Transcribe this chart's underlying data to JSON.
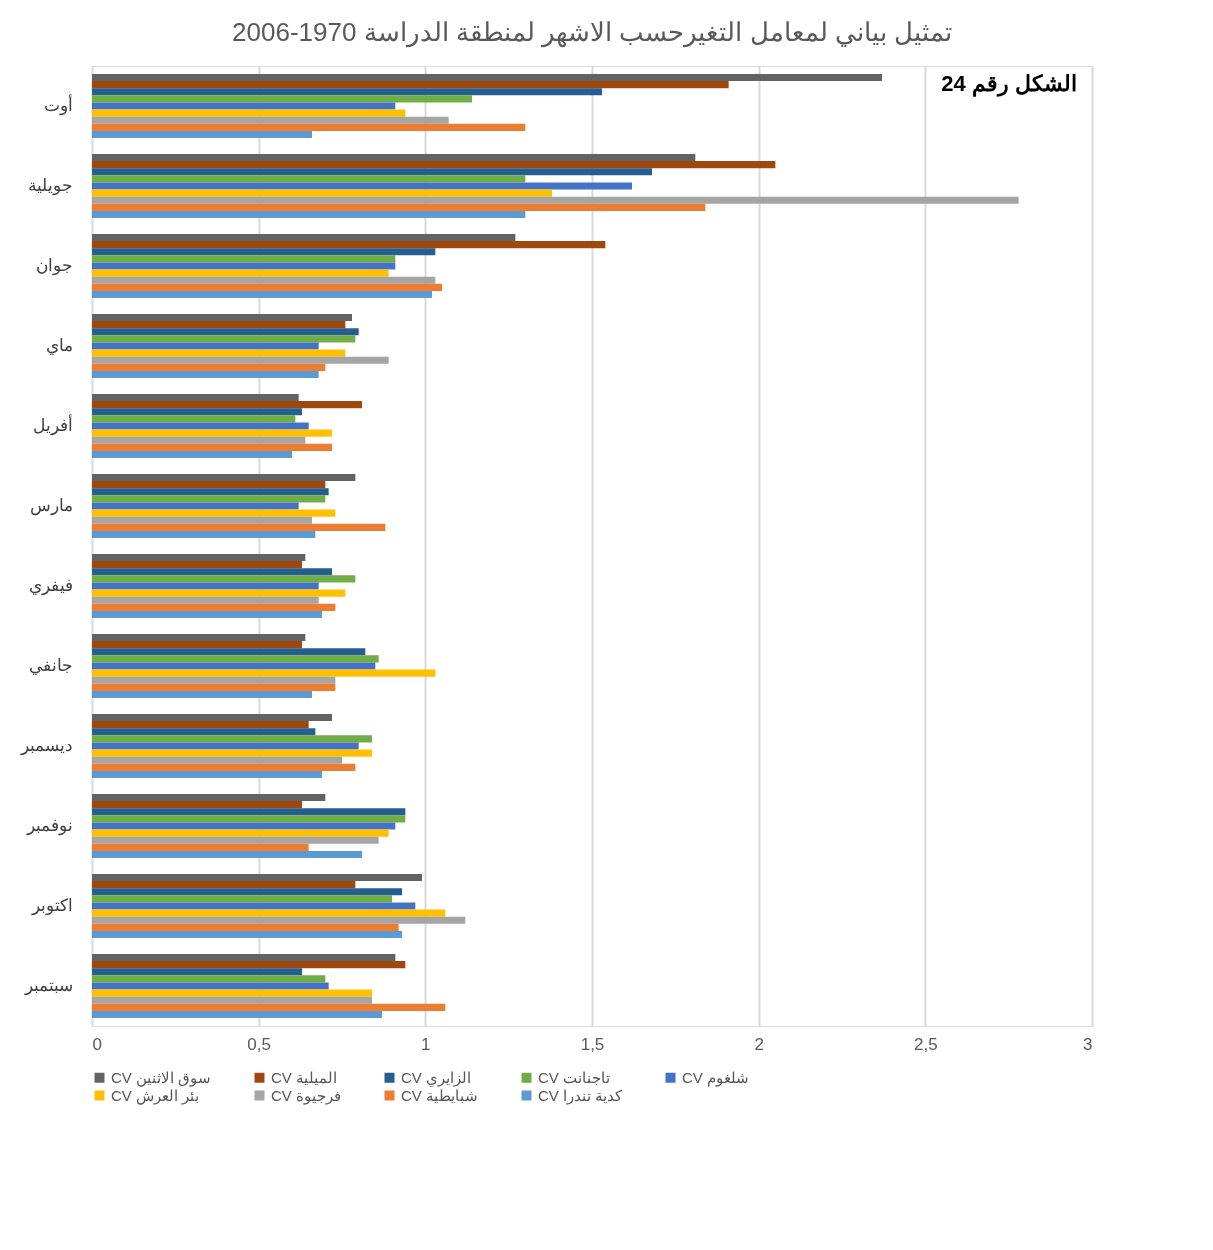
{
  "chart_data": {
    "type": "bar",
    "orientation": "horizontal",
    "title": "تمثيل بياني لمعامل التغيرحسب الاشهر لمنطقة الدراسة 1970-2006",
    "annotations": [
      "الشكل رقم 24"
    ],
    "categories": [
      "أوت",
      "جويلية",
      "جوان",
      "ماي",
      "أفريل",
      "مارس",
      "فيفري",
      "جانفي",
      "ديسمبر",
      "نوفمبر",
      "اكتوبر",
      "سبتمبر"
    ],
    "series": [
      {
        "name": "CV سوق الاثنين",
        "color": "#636363",
        "values": [
          2.37,
          1.81,
          1.27,
          0.78,
          0.62,
          0.79,
          0.64,
          0.64,
          0.72,
          0.7,
          0.99,
          0.91
        ]
      },
      {
        "name": "CV الميلية",
        "color": "#9e480e",
        "values": [
          1.91,
          2.05,
          1.54,
          0.76,
          0.81,
          0.7,
          0.63,
          0.63,
          0.65,
          0.63,
          0.79,
          0.94
        ]
      },
      {
        "name": "CV الزايري",
        "color": "#255e91",
        "values": [
          1.53,
          1.68,
          1.03,
          0.8,
          0.63,
          0.71,
          0.72,
          0.82,
          0.67,
          0.94,
          0.93,
          0.63
        ]
      },
      {
        "name": "CV تاجنانت",
        "color": "#70ad47",
        "values": [
          1.14,
          1.3,
          0.91,
          0.79,
          0.61,
          0.7,
          0.79,
          0.86,
          0.84,
          0.94,
          0.9,
          0.7
        ]
      },
      {
        "name": "CV شلغوم",
        "color": "#4472c4",
        "values": [
          0.91,
          1.62,
          0.91,
          0.68,
          0.65,
          0.62,
          0.68,
          0.85,
          0.8,
          0.91,
          0.97,
          0.71
        ]
      },
      {
        "name": "CV بئر العرش",
        "color": "#ffc000",
        "values": [
          0.94,
          1.38,
          0.89,
          0.76,
          0.72,
          0.73,
          0.76,
          1.03,
          0.84,
          0.89,
          1.06,
          0.84
        ]
      },
      {
        "name": "CV فرجيوة",
        "color": "#a5a5a5",
        "values": [
          1.07,
          2.78,
          1.03,
          0.89,
          0.64,
          0.66,
          0.68,
          0.73,
          0.75,
          0.86,
          1.12,
          0.84
        ]
      },
      {
        "name": "CV شبايطية",
        "color": "#ed7d31",
        "values": [
          1.3,
          1.84,
          1.05,
          0.7,
          0.72,
          0.88,
          0.73,
          0.73,
          0.79,
          0.65,
          0.92,
          1.06
        ]
      },
      {
        "name": "CV كدية تندرا",
        "color": "#5b9bd5",
        "values": [
          0.66,
          1.3,
          1.02,
          0.68,
          0.6,
          0.67,
          0.69,
          0.66,
          0.69,
          0.81,
          0.93,
          0.87
        ]
      }
    ],
    "xlim": [
      0,
      3
    ],
    "xticks": [
      0,
      {
        "value": 0.5,
        "label": "0,5"
      },
      1,
      {
        "value": 1.5,
        "label": "1,5"
      },
      2,
      {
        "value": 2.5,
        "label": "2,5"
      },
      3
    ],
    "grid": "x",
    "legend": "bottom"
  }
}
